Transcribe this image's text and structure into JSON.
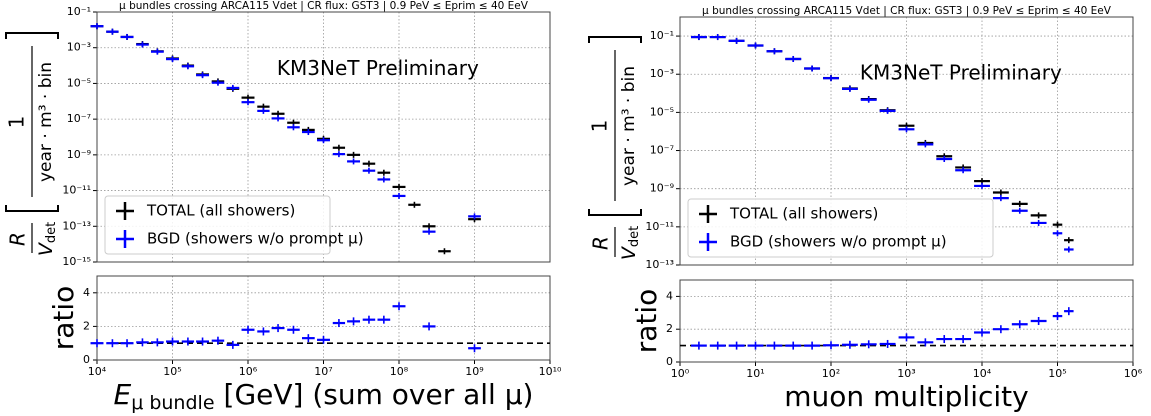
{
  "chart_data": [
    {
      "type": "errorbar-ratio",
      "title": "μ bundles crossing ARCA115 Vdet | CR flux: GST3 | 0.9 PeV ≤ Eprim ≤ 40 EeV",
      "ylabel": {
        "numerator": "R",
        "denominator": "V",
        "denominator_sub": "det",
        "unit_numerator": "1",
        "unit_denominator": "year · m³ · bin"
      },
      "xlabel": {
        "main": "E",
        "sub": "μ bundle",
        "rest": "[GeV] (sum over all μ)"
      },
      "annotation": "KM3NeT Preliminary",
      "log_x": true,
      "log_y": true,
      "grid": true,
      "legend": "lower left",
      "xlim": [
        10000.0,
        10000000000.0
      ],
      "xticks": [
        {
          "value": 10000.0,
          "label": "10⁴"
        },
        {
          "value": 100000.0,
          "label": "10⁵"
        },
        {
          "value": 1000000.0,
          "label": "10⁶"
        },
        {
          "value": 10000000.0,
          "label": "10⁷"
        },
        {
          "value": 100000000.0,
          "label": "10⁸"
        },
        {
          "value": 1000000000.0,
          "label": "10⁹"
        },
        {
          "value": 10000000000.0,
          "label": "10¹⁰"
        }
      ],
      "ylim": [
        1e-15,
        0.1
      ],
      "yticks": [
        {
          "value": 1e-15,
          "label": "10⁻¹⁵"
        },
        {
          "value": 1e-13,
          "label": "10⁻¹³"
        },
        {
          "value": 1e-11,
          "label": "10⁻¹¹"
        },
        {
          "value": 1e-09,
          "label": "10⁻⁹"
        },
        {
          "value": 1e-07,
          "label": "10⁻⁷"
        },
        {
          "value": 1e-05,
          "label": "10⁻⁵"
        },
        {
          "value": 0.001,
          "label": "10⁻³"
        },
        {
          "value": 0.1,
          "label": "10⁻¹"
        }
      ],
      "x": [
        10000.0,
        16000.0,
        25000.0,
        40000.0,
        63000.0,
        100000.0,
        160000.0,
        250000.0,
        400000.0,
        630000.0,
        1000000.0,
        1600000.0,
        2500000.0,
        4000000.0,
        6300000.0,
        10000000.0,
        16000000.0,
        25000000.0,
        40000000.0,
        63000000.0,
        100000000.0,
        160000000.0,
        250000000.0,
        400000000.0,
        630000000.0,
        1000000000.0
      ],
      "series": [
        {
          "name": "TOTAL (all showers)",
          "color": "#000000",
          "values": [
            0.016,
            0.0079,
            0.004,
            0.0016,
            0.00063,
            0.00025,
            0.0001,
            3.2e-05,
            1.3e-05,
            5e-06,
            1.6e-06,
            5e-07,
            2e-07,
            6.3e-08,
            2.5e-08,
            7.9e-09,
            2.5e-09,
            1e-09,
            3.2e-10,
            1e-10,
            1.6e-11,
            1.6e-12,
            1e-13,
            4e-15,
            null,
            2.5e-13
          ]
        },
        {
          "name": "BGD (showers w/o prompt μ)",
          "color": "#0000ff",
          "values": [
            0.016,
            0.0079,
            0.004,
            0.0015,
            0.0006,
            0.00023,
            9.1e-05,
            2.9e-05,
            1.1e-05,
            5.6e-06,
            8.9e-07,
            2.9e-07,
            1.1e-07,
            3.5e-08,
            1.9e-08,
            6.6e-09,
            1.1e-09,
            4.3e-10,
            1.3e-10,
            4.2e-11,
            5e-12,
            null,
            5e-14,
            null,
            null,
            3.6e-13
          ]
        }
      ],
      "ratio": {
        "ylabel": "ratio",
        "color": "#0000ff",
        "ylim": [
          0,
          5
        ],
        "yticks": [
          0,
          2,
          4
        ],
        "reference": 1,
        "values": [
          1.0,
          1.0,
          1.0,
          1.05,
          1.05,
          1.1,
          1.1,
          1.1,
          1.15,
          0.9,
          1.8,
          1.7,
          1.9,
          1.8,
          1.3,
          1.2,
          2.2,
          2.3,
          2.4,
          2.4,
          3.2,
          null,
          2.0,
          null,
          null,
          0.7
        ]
      }
    },
    {
      "type": "errorbar-ratio",
      "title": "μ bundles crossing ARCA115 Vdet | CR flux: GST3 | 0.9 PeV ≤ Eprim ≤ 40 EeV",
      "ylabel": {
        "numerator": "R",
        "denominator": "V",
        "denominator_sub": "det",
        "unit_numerator": "1",
        "unit_denominator": "year · m³ · bin"
      },
      "xlabel": "muon multiplicity",
      "annotation": "KM3NeT Preliminary",
      "log_x": true,
      "log_y": true,
      "grid": true,
      "legend": "lower left",
      "xlim": [
        1,
        1000000.0
      ],
      "xticks": [
        {
          "value": 1,
          "label": "10⁰"
        },
        {
          "value": 10,
          "label": "10¹"
        },
        {
          "value": 100,
          "label": "10²"
        },
        {
          "value": 1000,
          "label": "10³"
        },
        {
          "value": 10000.0,
          "label": "10⁴"
        },
        {
          "value": 100000.0,
          "label": "10⁵"
        },
        {
          "value": 1000000.0,
          "label": "10⁶"
        }
      ],
      "ylim": [
        1e-13,
        1
      ],
      "yticks": [
        {
          "value": 1e-13,
          "label": "10⁻¹³"
        },
        {
          "value": 1e-11,
          "label": "10⁻¹¹"
        },
        {
          "value": 1e-09,
          "label": "10⁻⁹"
        },
        {
          "value": 1e-07,
          "label": "10⁻⁷"
        },
        {
          "value": 1e-05,
          "label": "10⁻⁵"
        },
        {
          "value": 0.001,
          "label": "10⁻³"
        },
        {
          "value": 0.1,
          "label": "10⁻¹"
        }
      ],
      "x": [
        1.78,
        3.16,
        5.62,
        10,
        17.8,
        31.6,
        56.2,
        100,
        178,
        316,
        562,
        1000,
        1778,
        3162,
        5623,
        10000,
        17783,
        31623,
        56234,
        100000,
        141254
      ],
      "series": [
        {
          "name": "TOTAL (all showers)",
          "color": "#000000",
          "values": [
            0.089,
            0.089,
            0.056,
            0.032,
            0.016,
            0.0063,
            0.002,
            0.00063,
            0.00018,
            5e-05,
            1.3e-05,
            2e-06,
            2.5e-07,
            5e-08,
            1.3e-08,
            2.5e-09,
            6.3e-10,
            1.6e-10,
            4e-11,
            1.3e-11,
            2e-12
          ]
        },
        {
          "name": "BGD (showers w/o prompt μ)",
          "color": "#0000ff",
          "values": [
            0.089,
            0.089,
            0.056,
            0.032,
            0.016,
            0.0063,
            0.002,
            0.00062,
            0.00017,
            4.6e-05,
            1.2e-05,
            1.3e-06,
            2.1e-07,
            3.6e-08,
            9.3e-09,
            1.4e-09,
            3.2e-10,
            7e-11,
            1.6e-11,
            4.6e-12,
            6.5e-13
          ]
        }
      ],
      "ratio": {
        "ylabel": "ratio",
        "color": "#0000ff",
        "ylim": [
          0,
          5
        ],
        "yticks": [
          0,
          2,
          4
        ],
        "reference": 1,
        "values": [
          1.0,
          1.0,
          1.0,
          1.0,
          1.0,
          1.0,
          1.0,
          1.02,
          1.05,
          1.08,
          1.1,
          1.5,
          1.2,
          1.4,
          1.4,
          1.8,
          2.0,
          2.3,
          2.5,
          2.8,
          3.1
        ]
      }
    }
  ]
}
